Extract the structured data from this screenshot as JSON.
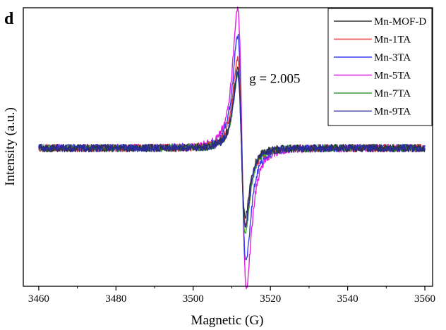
{
  "panel_label": "d",
  "chart_data": {
    "type": "line",
    "title": "",
    "xlabel": "Magnetic (G)",
    "ylabel": "Intensity (a.u.)",
    "xlim": [
      3456,
      3562
    ],
    "ylim": [
      -1.05,
      1.05
    ],
    "xticks": [
      3460,
      3480,
      3500,
      3520,
      3540,
      3560
    ],
    "yticks_shown": false,
    "grid": false,
    "legend_position": "top-right",
    "annotation": {
      "text": "g = 2.005",
      "x": 3514.5,
      "y": 0.47
    },
    "center_field": 3512.5,
    "series": [
      {
        "name": "Mn-MOF-D",
        "color": "#333333",
        "peak_x": 3511.5,
        "peak_y": 0.58,
        "trough_x": 3513.5,
        "trough_y": -0.49
      },
      {
        "name": "Mn-1TA",
        "color": "#e8383b",
        "peak_x": 3511.5,
        "peak_y": 0.66,
        "trough_x": 3513.6,
        "trough_y": -0.56
      },
      {
        "name": "Mn-3TA",
        "color": "#3b3bef",
        "peak_x": 3511.5,
        "peak_y": 0.81,
        "trough_x": 3513.7,
        "trough_y": -0.82
      },
      {
        "name": "Mn-5TA",
        "color": "#e01ee0",
        "peak_x": 3511.5,
        "peak_y": 1.0,
        "trough_x": 3513.8,
        "trough_y": -1.0
      },
      {
        "name": "Mn-7TA",
        "color": "#3a9a3a",
        "peak_x": 3511.5,
        "peak_y": 0.53,
        "trough_x": 3513.5,
        "trough_y": -0.62
      },
      {
        "name": "Mn-9TA",
        "color": "#2a2a9a",
        "peak_x": 3511.5,
        "peak_y": 0.54,
        "trough_x": 3513.5,
        "trough_y": -0.57
      }
    ]
  }
}
